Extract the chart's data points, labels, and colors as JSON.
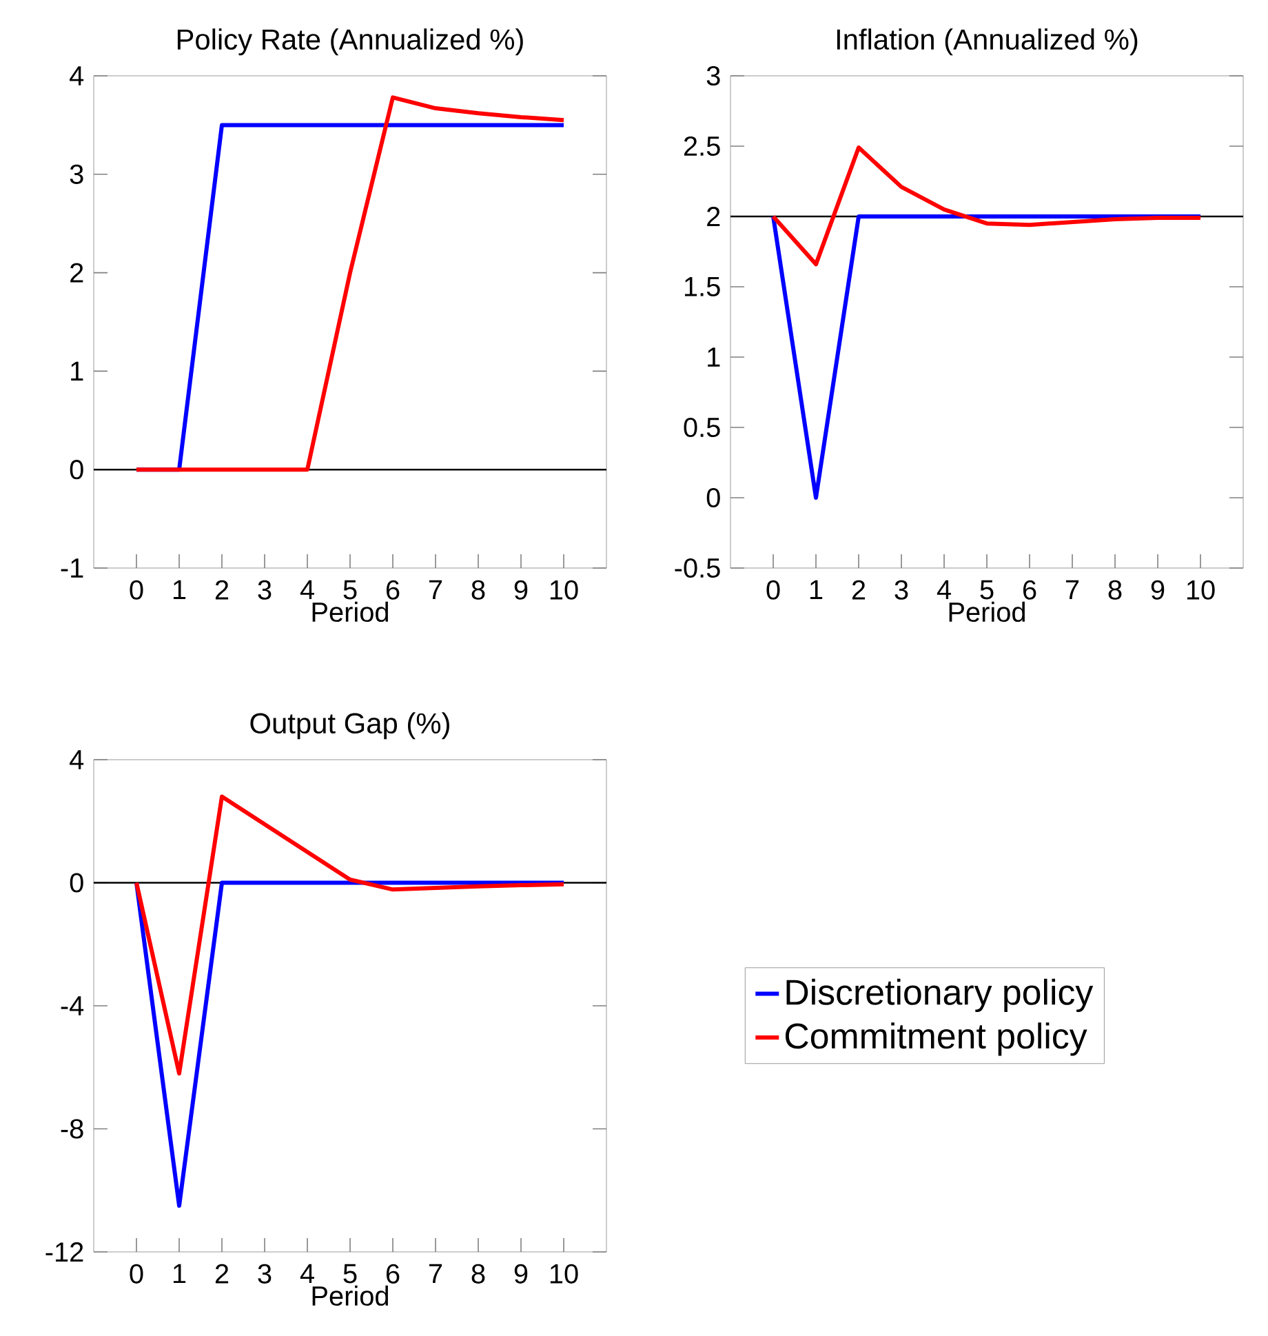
{
  "chart_data": [
    {
      "type": "line",
      "title": "Policy Rate (Annualized %)",
      "xlabel": "Period",
      "x": [
        0,
        1,
        2,
        3,
        4,
        5,
        6,
        7,
        8,
        9,
        10
      ],
      "xlim": [
        -1,
        11
      ],
      "xticks": [
        0,
        1,
        2,
        3,
        4,
        5,
        6,
        7,
        8,
        9,
        10
      ],
      "ylim": [
        -1,
        4
      ],
      "yticks": [
        -1,
        0,
        1,
        2,
        3,
        4
      ],
      "grid": false,
      "legend": false,
      "marker": "none",
      "line_style": "solid",
      "ref_lines": [
        {
          "axis": "y",
          "value": 0,
          "color": "#000000"
        }
      ],
      "series": [
        {
          "color": "#0000ff",
          "values": [
            0,
            0,
            3.5,
            3.5,
            3.5,
            3.5,
            3.5,
            3.5,
            3.5,
            3.5,
            3.5
          ]
        },
        {
          "color": "#ff0000",
          "values": [
            0,
            0,
            0,
            0,
            0,
            2.0,
            3.78,
            3.67,
            3.62,
            3.58,
            3.55
          ]
        }
      ]
    },
    {
      "type": "line",
      "title": "Inflation (Annualized %)",
      "xlabel": "Period",
      "x": [
        0,
        1,
        2,
        3,
        4,
        5,
        6,
        7,
        8,
        9,
        10
      ],
      "xlim": [
        -1,
        11
      ],
      "xticks": [
        0,
        1,
        2,
        3,
        4,
        5,
        6,
        7,
        8,
        9,
        10
      ],
      "ylim": [
        -0.5,
        3
      ],
      "yticks": [
        -0.5,
        0,
        0.5,
        1,
        1.5,
        2,
        2.5,
        3
      ],
      "grid": false,
      "legend": false,
      "marker": "none",
      "line_style": "solid",
      "ref_lines": [
        {
          "axis": "y",
          "value": 2,
          "color": "#000000"
        }
      ],
      "series": [
        {
          "color": "#0000ff",
          "values": [
            2,
            0,
            2,
            2,
            2,
            2,
            2,
            2,
            2,
            2,
            2
          ]
        },
        {
          "color": "#ff0000",
          "values": [
            2,
            1.66,
            2.49,
            2.21,
            2.05,
            1.95,
            1.94,
            1.96,
            1.98,
            1.99,
            1.99
          ]
        }
      ]
    },
    {
      "type": "line",
      "title": "Output Gap (%)",
      "xlabel": "Period",
      "x": [
        0,
        1,
        2,
        3,
        4,
        5,
        6,
        7,
        8,
        9,
        10
      ],
      "xlim": [
        -1,
        11
      ],
      "xticks": [
        0,
        1,
        2,
        3,
        4,
        5,
        6,
        7,
        8,
        9,
        10
      ],
      "ylim": [
        -12,
        4
      ],
      "yticks": [
        -12,
        -8,
        -4,
        0,
        4
      ],
      "grid": false,
      "legend": "right",
      "marker": "none",
      "line_style": "solid",
      "ref_lines": [
        {
          "axis": "y",
          "value": 0,
          "color": "#000000"
        }
      ],
      "series": [
        {
          "name": "Discretionary policy",
          "color": "#0000ff",
          "values": [
            0,
            -10.5,
            0,
            0,
            0,
            0,
            0,
            0,
            0,
            0,
            0
          ]
        },
        {
          "name": "Commitment policy",
          "color": "#ff0000",
          "values": [
            0,
            -6.2,
            2.8,
            1.9,
            1.0,
            0.1,
            -0.22,
            -0.17,
            -0.12,
            -0.08,
            -0.05
          ]
        }
      ]
    }
  ]
}
